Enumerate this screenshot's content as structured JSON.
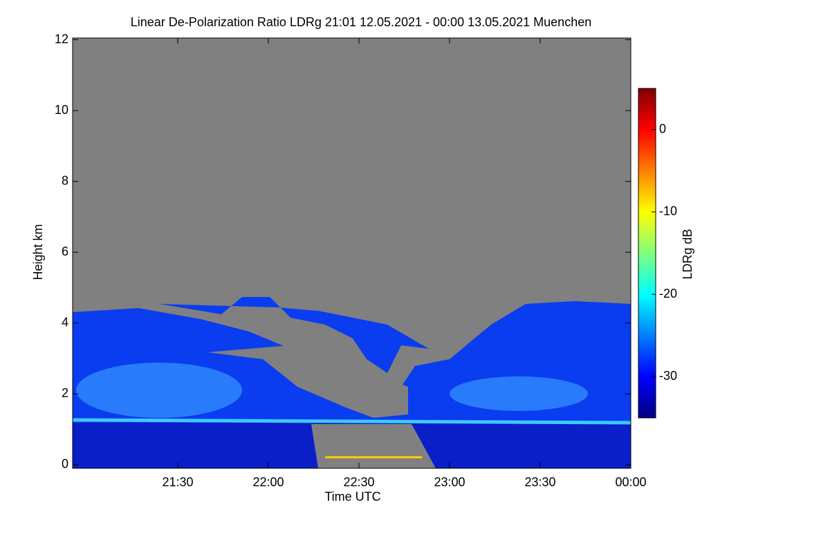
{
  "chart_data": {
    "type": "heatmap",
    "title": "Linear De-Polarization Ratio LDRg   21:01 12.05.2021 - 00:00 13.05.2021 Muenchen",
    "xlabel": "Time UTC",
    "ylabel": "Height km",
    "xlim": [
      20.92,
      24.0
    ],
    "xticks": [
      {
        "value": 21.5,
        "label": "21:30"
      },
      {
        "value": 22,
        "label": "22:00"
      },
      {
        "value": 22.5,
        "label": "22:30"
      },
      {
        "value": 23,
        "label": "23:00"
      },
      {
        "value": 23.5,
        "label": "23:30"
      },
      {
        "value": 24,
        "label": "00:00"
      }
    ],
    "ylim": [
      -0.1,
      12.05
    ],
    "yticks": [
      0,
      2,
      4,
      6,
      8,
      10,
      12
    ],
    "colorbar_label": "LDRg dB",
    "clim": [
      -35,
      5
    ],
    "cticks": [
      0,
      -10,
      -20,
      -30
    ],
    "colormap": [
      "#00007f",
      "#0000ff",
      "#007fff",
      "#00ffff",
      "#7fff7f",
      "#ffff00",
      "#ff7f00",
      "#ff0000",
      "#7f0000"
    ],
    "missing_color": "#808080"
  }
}
